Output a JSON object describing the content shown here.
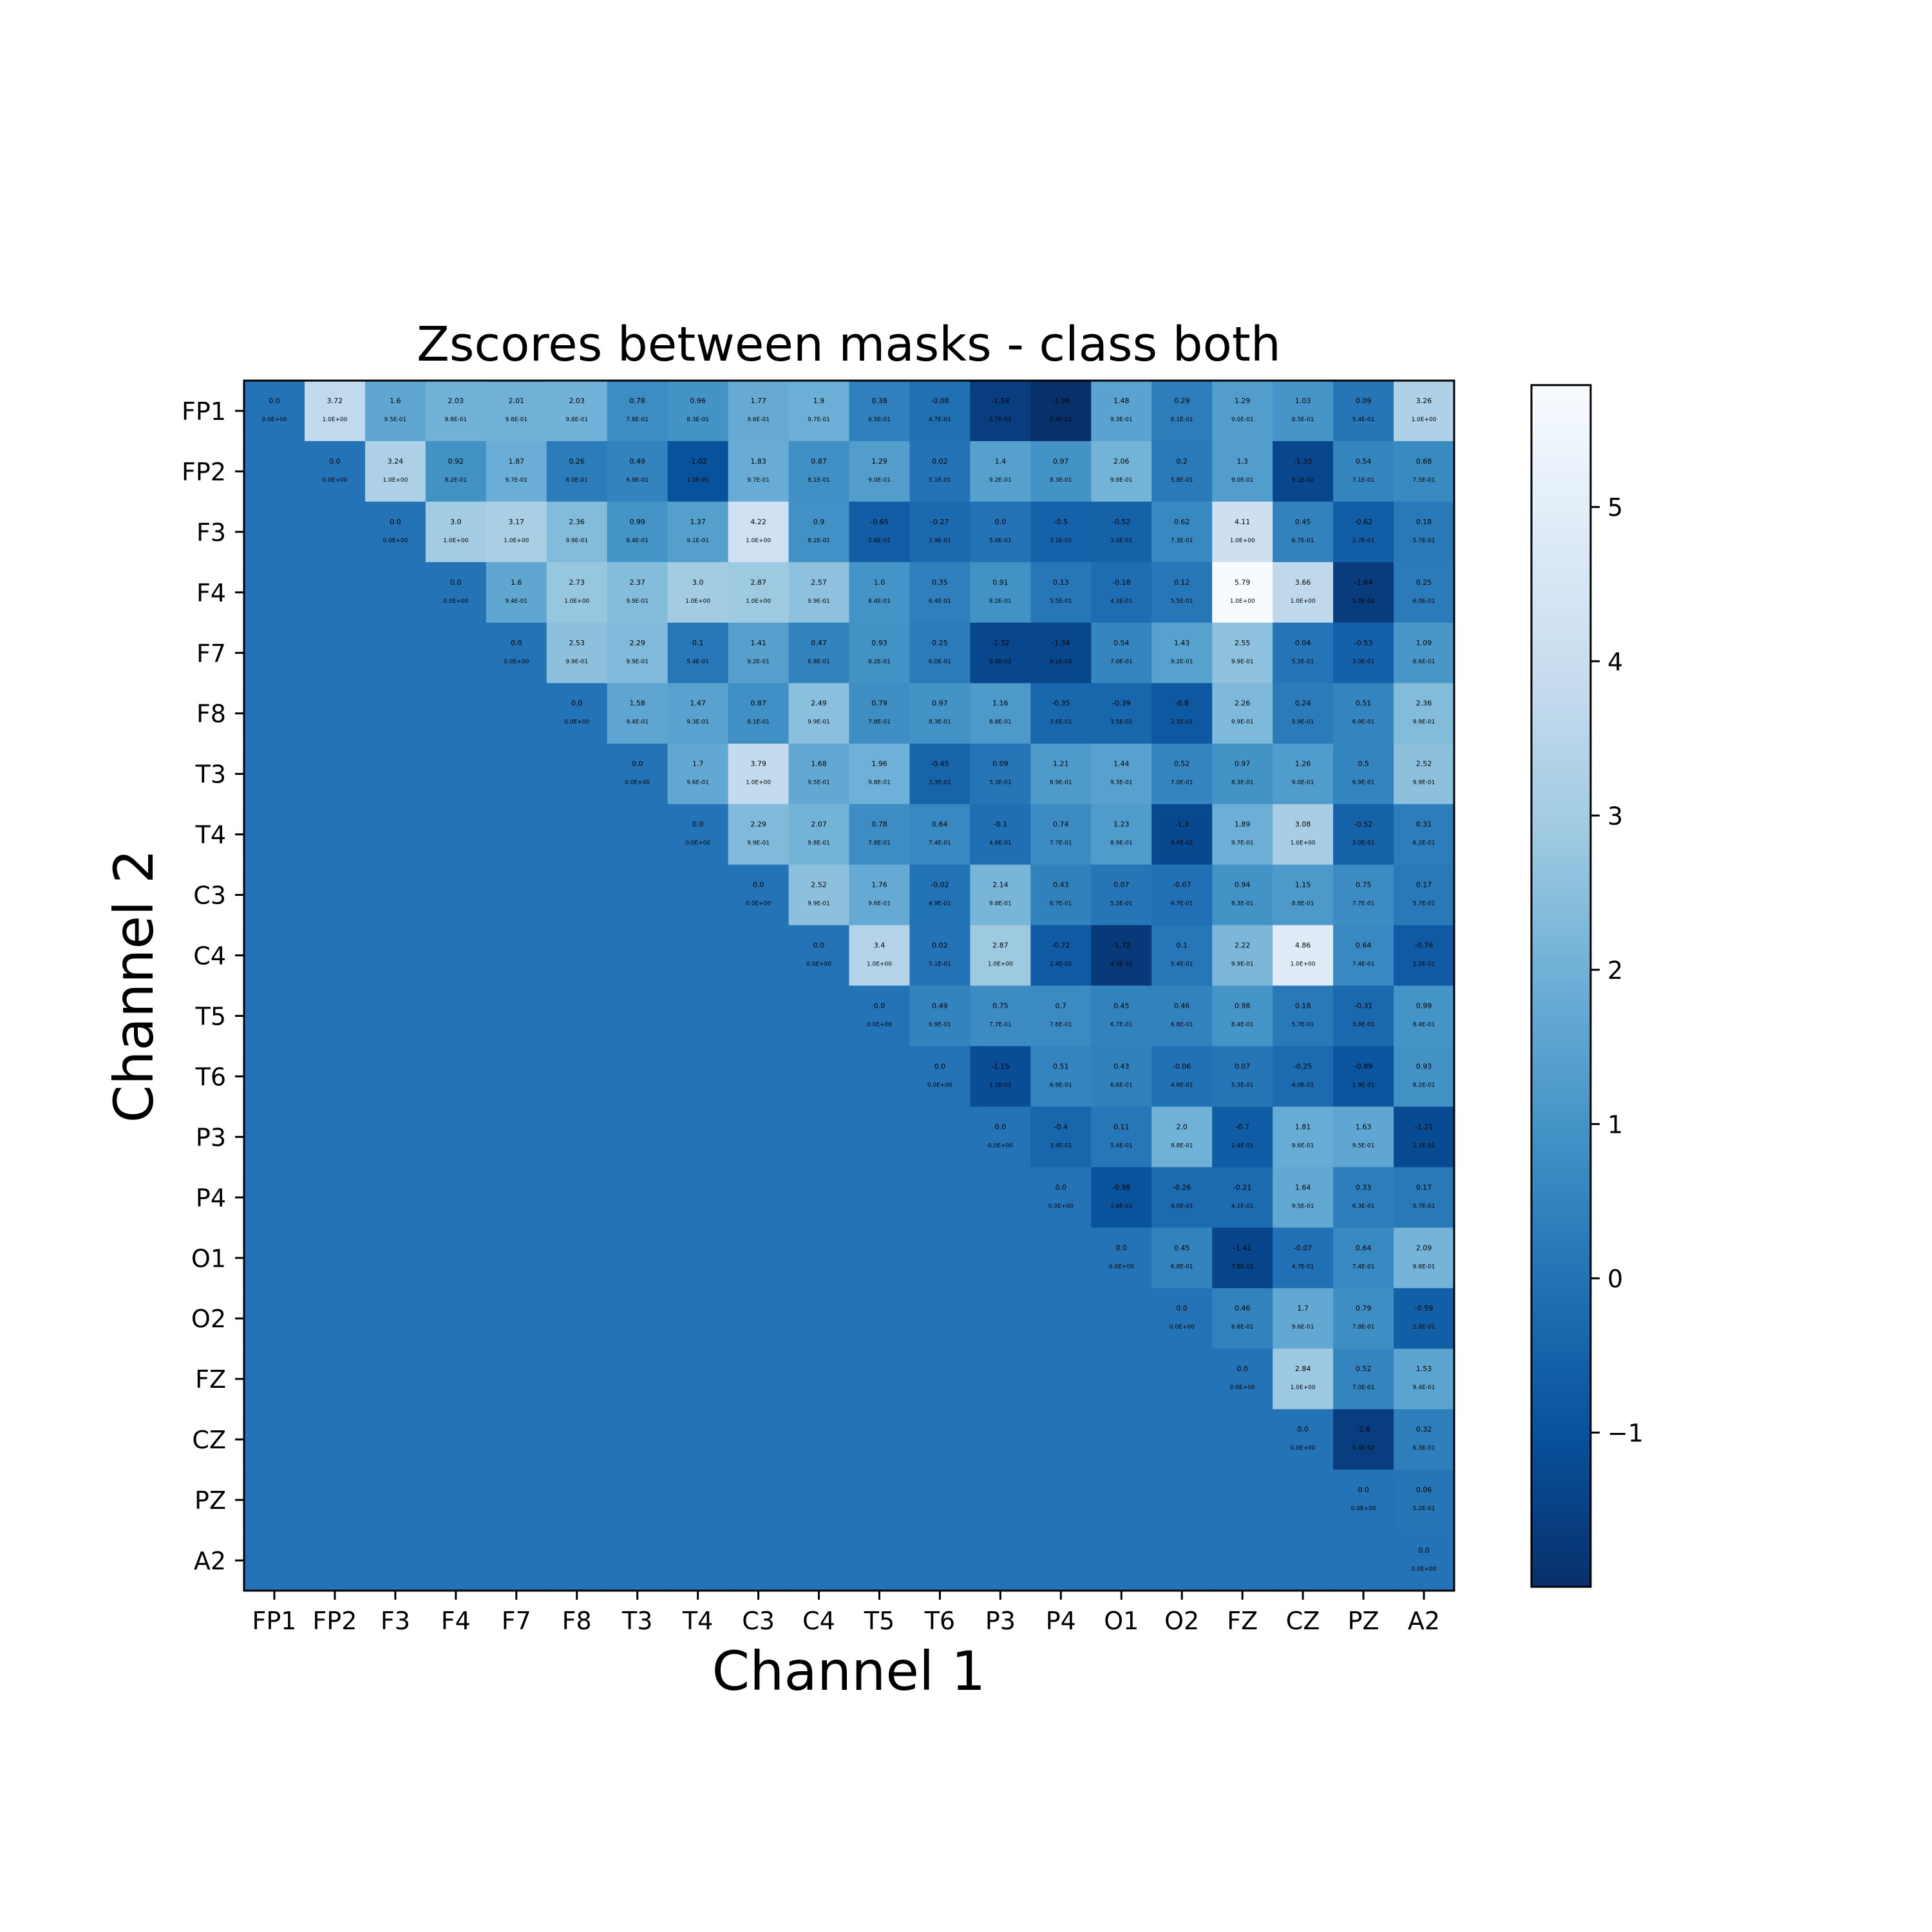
{
  "chart_data": {
    "type": "heatmap",
    "title": "Zscores between masks - class both",
    "xlabel": "Channel 1",
    "ylabel": "Channel 2",
    "channels": [
      "FP1",
      "FP2",
      "F3",
      "F4",
      "F7",
      "F8",
      "T3",
      "T4",
      "C3",
      "C4",
      "T5",
      "T6",
      "P3",
      "P4",
      "O1",
      "O2",
      "FZ",
      "CZ",
      "PZ",
      "A2"
    ],
    "colormap": "Blues_r",
    "vmin": -2.0,
    "vmax": 5.79,
    "lower_triangle_fill": 0.0,
    "colorbar_ticks": [
      -1,
      0,
      1,
      2,
      3,
      4,
      5
    ],
    "colorbar_tick_labels": [
      "−1",
      "0",
      "1",
      "2",
      "3",
      "4",
      "5"
    ],
    "rows": [
      {
        "z": [
          "0.0",
          "3.72",
          "1.6",
          "2.03",
          "2.01",
          "2.03",
          "0.78",
          "0.96",
          "1.77",
          "1.9",
          "0.38",
          "-0.08",
          "-1.58",
          "-1.98",
          "1.48",
          "0.29",
          "1.29",
          "1.03",
          "0.09",
          "3.26"
        ],
        "p": [
          "0.0E+00",
          "1.0E+00",
          "9.5E-01",
          "9.8E-01",
          "9.8E-01",
          "9.8E-01",
          "7.8E-01",
          "8.3E-01",
          "9.6E-01",
          "9.7E-01",
          "6.5E-01",
          "4.7E-01",
          "5.7E-02",
          "2.4E-02",
          "9.3E-01",
          "6.1E-01",
          "9.0E-01",
          "8.5E-01",
          "5.4E-01",
          "1.0E+00"
        ]
      },
      {
        "z": [
          "0.0",
          "3.24",
          "0.92",
          "1.87",
          "0.26",
          "0.49",
          "-1.02",
          "1.83",
          "0.87",
          "1.29",
          "0.02",
          "1.4",
          "0.97",
          "2.06",
          "0.2",
          "1.3",
          "-1.33",
          "0.54",
          "0.68"
        ],
        "p": [
          "0.0E+00",
          "1.0E+00",
          "8.2E-01",
          "9.7E-01",
          "6.0E-01",
          "6.9E-01",
          "1.5E-01",
          "9.7E-01",
          "8.1E-01",
          "9.0E-01",
          "5.1E-01",
          "9.2E-01",
          "8.3E-01",
          "9.8E-01",
          "5.8E-01",
          "9.0E-01",
          "9.1E-02",
          "7.1E-01",
          "7.5E-01"
        ]
      },
      {
        "z": [
          "0.0",
          "3.0",
          "3.17",
          "2.36",
          "0.99",
          "1.37",
          "4.22",
          "0.9",
          "-0.65",
          "-0.27",
          "0.0",
          "-0.5",
          "-0.52",
          "0.62",
          "4.11",
          "0.45",
          "-0.62",
          "0.18"
        ],
        "p": [
          "0.0E+00",
          "1.0E+00",
          "1.0E+00",
          "9.9E-01",
          "8.4E-01",
          "9.1E-01",
          "1.0E+00",
          "8.2E-01",
          "2.6E-01",
          "3.9E-01",
          "5.0E-01",
          "3.1E-01",
          "3.0E-01",
          "7.3E-01",
          "1.0E+00",
          "6.7E-01",
          "2.7E-01",
          "5.7E-01"
        ]
      },
      {
        "z": [
          "0.0",
          "1.6",
          "2.73",
          "2.37",
          "3.0",
          "2.87",
          "2.57",
          "1.0",
          "0.35",
          "0.91",
          "0.13",
          "-0.18",
          "0.12",
          "5.79",
          "3.66",
          "-1.64",
          "0.25"
        ],
        "p": [
          "0.0E+00",
          "9.4E-01",
          "1.0E+00",
          "9.9E-01",
          "1.0E+00",
          "1.0E+00",
          "9.9E-01",
          "8.4E-01",
          "6.4E-01",
          "8.2E-01",
          "5.5E-01",
          "4.3E-01",
          "5.5E-01",
          "1.0E+00",
          "1.0E+00",
          "5.0E-02",
          "6.0E-01"
        ]
      },
      {
        "z": [
          "0.0",
          "2.53",
          "2.29",
          "0.1",
          "1.41",
          "0.47",
          "0.93",
          "0.25",
          "-1.32",
          "-1.34",
          "0.54",
          "1.43",
          "2.55",
          "0.04",
          "-0.53",
          "1.09"
        ],
        "p": [
          "0.0E+00",
          "9.9E-01",
          "9.9E-01",
          "5.4E-01",
          "9.2E-01",
          "6.8E-01",
          "8.2E-01",
          "6.0E-01",
          "9.4E-02",
          "9.1E-02",
          "7.0E-01",
          "9.2E-01",
          "9.9E-01",
          "5.2E-01",
          "3.0E-01",
          "8.6E-01"
        ]
      },
      {
        "z": [
          "0.0",
          "1.58",
          "1.47",
          "0.87",
          "2.49",
          "0.79",
          "0.97",
          "1.16",
          "-0.35",
          "-0.39",
          "-0.8",
          "2.26",
          "0.24",
          "0.51",
          "2.36"
        ],
        "p": [
          "0.0E+00",
          "9.4E-01",
          "9.3E-01",
          "8.1E-01",
          "9.9E-01",
          "7.8E-01",
          "8.3E-01",
          "8.8E-01",
          "3.6E-01",
          "3.5E-01",
          "2.1E-01",
          "9.9E-01",
          "5.9E-01",
          "6.9E-01",
          "9.9E-01"
        ]
      },
      {
        "z": [
          "0.0",
          "1.7",
          "3.79",
          "1.68",
          "1.96",
          "-0.45",
          "0.09",
          "1.21",
          "1.44",
          "0.52",
          "0.97",
          "1.26",
          "0.5",
          "2.52"
        ],
        "p": [
          "0.0E+00",
          "9.6E-01",
          "1.0E+00",
          "9.5E-01",
          "9.8E-01",
          "3.3E-01",
          "5.3E-01",
          "8.9E-01",
          "9.3E-01",
          "7.0E-01",
          "8.3E-01",
          "9.0E-01",
          "6.9E-01",
          "9.9E-01"
        ]
      },
      {
        "z": [
          "0.0",
          "2.29",
          "2.07",
          "0.78",
          "0.64",
          "-0.1",
          "0.74",
          "1.23",
          "-1.3",
          "1.89",
          "3.08",
          "-0.52",
          "0.31"
        ],
        "p": [
          "0.0E+00",
          "9.9E-01",
          "9.8E-01",
          "7.8E-01",
          "7.4E-01",
          "4.6E-01",
          "7.7E-01",
          "8.9E-01",
          "9.6E-02",
          "9.7E-01",
          "1.0E+00",
          "3.0E-01",
          "6.2E-01"
        ]
      },
      {
        "z": [
          "0.0",
          "2.52",
          "1.76",
          "-0.02",
          "2.14",
          "0.43",
          "0.07",
          "-0.07",
          "0.94",
          "1.15",
          "0.75",
          "0.17"
        ],
        "p": [
          "0.0E+00",
          "9.9E-01",
          "9.6E-01",
          "4.9E-01",
          "9.8E-01",
          "6.7E-01",
          "5.3E-01",
          "4.7E-01",
          "8.3E-01",
          "8.8E-01",
          "7.7E-01",
          "5.7E-01"
        ]
      },
      {
        "z": [
          "0.0",
          "3.4",
          "0.02",
          "2.87",
          "-0.72",
          "-1.72",
          "0.1",
          "2.22",
          "4.86",
          "0.64",
          "-0.76"
        ],
        "p": [
          "0.0E+00",
          "1.0E+00",
          "5.1E-01",
          "1.0E+00",
          "2.4E-01",
          "4.3E-02",
          "5.4E-01",
          "9.9E-01",
          "1.0E+00",
          "7.4E-01",
          "2.2E-01"
        ]
      },
      {
        "z": [
          "0.0",
          "0.49",
          "0.75",
          "0.7",
          "0.45",
          "0.46",
          "0.98",
          "0.18",
          "-0.31",
          "0.99"
        ],
        "p": [
          "0.0E+00",
          "6.9E-01",
          "7.7E-01",
          "7.6E-01",
          "6.7E-01",
          "6.8E-01",
          "8.4E-01",
          "5.7E-01",
          "3.8E-01",
          "8.4E-01"
        ]
      },
      {
        "z": [
          "0.0",
          "-1.15",
          "0.51",
          "0.43",
          "-0.06",
          "0.07",
          "-0.25",
          "-0.89",
          "0.93"
        ],
        "p": [
          "0.0E+00",
          "1.3E-01",
          "6.9E-01",
          "6.6E-01",
          "4.8E-01",
          "5.3E-01",
          "4.0E-01",
          "1.9E-01",
          "8.2E-01"
        ]
      },
      {
        "z": [
          "0.0",
          "-0.4",
          "0.11",
          "2.0",
          "-0.7",
          "1.81",
          "1.63",
          "-1.21"
        ],
        "p": [
          "0.0E+00",
          "3.4E-01",
          "5.4E-01",
          "9.8E-01",
          "2.4E-01",
          "9.6E-01",
          "9.5E-01",
          "1.1E-01"
        ]
      },
      {
        "z": [
          "0.0",
          "-0.98",
          "-0.26",
          "-0.21",
          "1.64",
          "0.33",
          "0.17"
        ],
        "p": [
          "0.0E+00",
          "1.6E-01",
          "4.0E-01",
          "4.1E-01",
          "9.5E-01",
          "6.3E-01",
          "5.7E-01"
        ]
      },
      {
        "z": [
          "0.0",
          "0.45",
          "-1.41",
          "-0.07",
          "0.64",
          "2.09"
        ],
        "p": [
          "0.0E+00",
          "6.8E-01",
          "7.8E-02",
          "4.7E-01",
          "7.4E-01",
          "9.8E-01"
        ]
      },
      {
        "z": [
          "0.0",
          "0.46",
          "1.7",
          "0.79",
          "-0.59"
        ],
        "p": [
          "0.0E+00",
          "6.8E-01",
          "9.6E-01",
          "7.8E-01",
          "2.8E-01"
        ]
      },
      {
        "z": [
          "0.0",
          "2.84",
          "0.52",
          "1.53"
        ],
        "p": [
          "0.0E+00",
          "1.0E+00",
          "7.0E-01",
          "9.4E-01"
        ]
      },
      {
        "z": [
          "0.0",
          "-1.6",
          "0.32"
        ],
        "p": [
          "0.0E+00",
          "5.4E-02",
          "6.3E-01"
        ]
      },
      {
        "z": [
          "0.0",
          "0.06"
        ],
        "p": [
          "0.0E+00",
          "5.2E-01"
        ]
      },
      {
        "z": [
          "0.0"
        ],
        "p": [
          "0.0E+00"
        ]
      }
    ]
  }
}
